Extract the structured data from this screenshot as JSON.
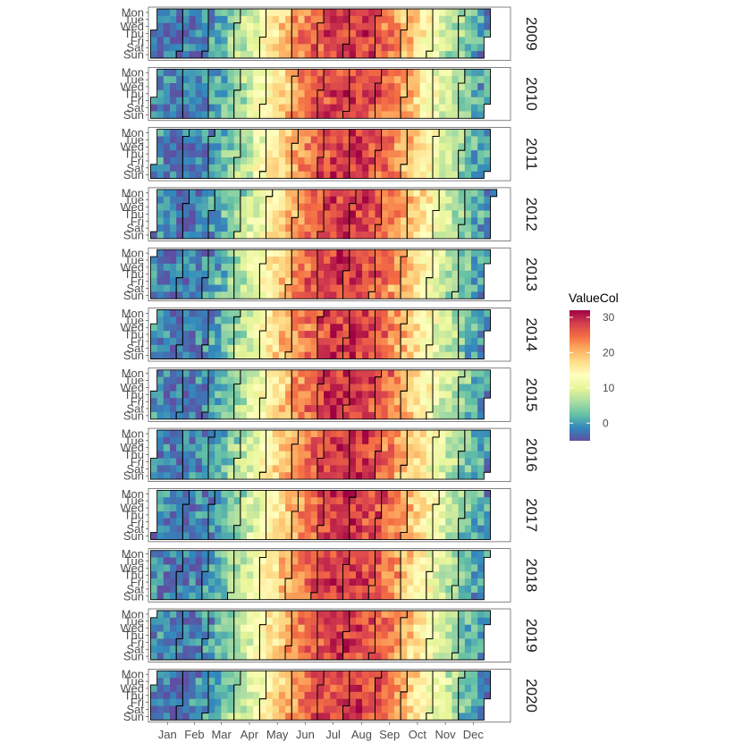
{
  "chart_data": {
    "type": "heatmap",
    "subtype": "calendar-heatmap",
    "title": "",
    "xlabel": "",
    "ylabel": "",
    "years": [
      "2009",
      "2010",
      "2011",
      "2012",
      "2013",
      "2014",
      "2015",
      "2016",
      "2017",
      "2018",
      "2019",
      "2020"
    ],
    "weekday_labels": [
      "Mon",
      "Tue",
      "Wed",
      "Thu",
      "Fri",
      "Sat",
      "Sun"
    ],
    "month_labels": [
      "Jan",
      "Feb",
      "Mar",
      "Apr",
      "May",
      "Jun",
      "Jul",
      "Aug",
      "Sep",
      "Oct",
      "Nov",
      "Dec"
    ],
    "legend": {
      "title": "ValueCol",
      "ticks": [
        0,
        10,
        20,
        30
      ],
      "range": [
        -5,
        32
      ],
      "colors": [
        "#5E4FA2",
        "#3288BD",
        "#66C2A5",
        "#ABDDA4",
        "#E6F598",
        "#FFFFBF",
        "#FEE08B",
        "#FDAE61",
        "#F46D43",
        "#D53E4F",
        "#9E0142"
      ]
    },
    "value_model": "estimated daily values: seasonal curve peaking ~31 in late Jul, ~0-3 in Jan, with day-to-day noise"
  }
}
